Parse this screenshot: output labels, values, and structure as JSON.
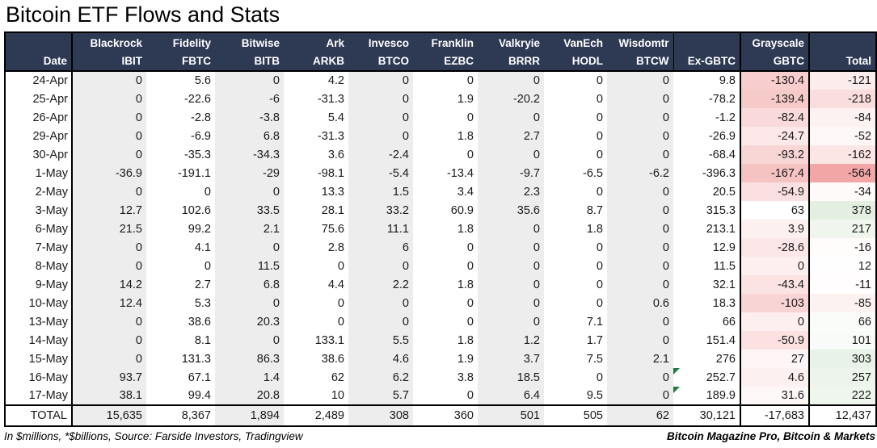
{
  "title": "Bitcoin ETF Flows and Stats",
  "footer": {
    "left": "In $millions, *$billions, Source: Farside Investors, Tradingview",
    "right": "Bitcoin Magazine Pro, Bitcoin & Markets"
  },
  "colors": {
    "header_bg": "#2E3A54",
    "header_text": "#FFFFFF",
    "band_gray": "#EDEDED",
    "band_white": "#FFFFFF",
    "total_neg_red": "#F3A6A6",
    "total_pos_green": "#E4EFE2",
    "gbtc_min_red": "#F6C3C3",
    "flag_green": "#1F7B3B"
  },
  "scales": {
    "gbtc": {
      "min": -167.4,
      "max": 63
    },
    "total": {
      "neg_limit": -564,
      "pos_limit": 378
    }
  },
  "chart_data": {
    "type": "table",
    "title": "Bitcoin ETF Flows and Stats",
    "column_groups": [
      "",
      "Blackrock",
      "Fidelity",
      "Bitwise",
      "Ark",
      "Invesco",
      "Franklin",
      "Valkryie",
      "VanEch",
      "Wisdomtr",
      "",
      "Grayscale",
      ""
    ],
    "columns": [
      "Date",
      "IBIT",
      "FBTC",
      "BITB",
      "ARKB",
      "BTCO",
      "EZBC",
      "BRRR",
      "HODL",
      "BTCW",
      "Ex-GBTC",
      "GBTC",
      "Total"
    ],
    "rows": [
      {
        "date": "24-Apr",
        "values": [
          "0",
          "5.6",
          "0",
          "4.2",
          "0",
          "0",
          "0",
          "0",
          "0",
          "9.8",
          "-130.4",
          "-121"
        ]
      },
      {
        "date": "25-Apr",
        "values": [
          "0",
          "-22.6",
          "-6",
          "-31.3",
          "0",
          "1.9",
          "-20.2",
          "0",
          "0",
          "-78.2",
          "-139.4",
          "-218"
        ]
      },
      {
        "date": "26-Apr",
        "values": [
          "0",
          "-2.8",
          "-3.8",
          "5.4",
          "0",
          "0",
          "0",
          "0",
          "0",
          "-1.2",
          "-82.4",
          "-84"
        ]
      },
      {
        "date": "29-Apr",
        "values": [
          "0",
          "-6.9",
          "6.8",
          "-31.3",
          "0",
          "1.8",
          "2.7",
          "0",
          "0",
          "-26.9",
          "-24.7",
          "-52"
        ]
      },
      {
        "date": "30-Apr",
        "values": [
          "0",
          "-35.3",
          "-34.3",
          "3.6",
          "-2.4",
          "0",
          "0",
          "0",
          "0",
          "-68.4",
          "-93.2",
          "-162"
        ]
      },
      {
        "date": "1-May",
        "values": [
          "-36.9",
          "-191.1",
          "-29",
          "-98.1",
          "-5.4",
          "-13.4",
          "-9.7",
          "-6.5",
          "-6.2",
          "-396.3",
          "-167.4",
          "-564"
        ]
      },
      {
        "date": "2-May",
        "values": [
          "0",
          "0",
          "0",
          "13.3",
          "1.5",
          "3.4",
          "2.3",
          "0",
          "0",
          "20.5",
          "-54.9",
          "-34"
        ]
      },
      {
        "date": "3-May",
        "values": [
          "12.7",
          "102.6",
          "33.5",
          "28.1",
          "33.2",
          "60.9",
          "35.6",
          "8.7",
          "0",
          "315.3",
          "63",
          "378"
        ]
      },
      {
        "date": "6-May",
        "values": [
          "21.5",
          "99.2",
          "2.1",
          "75.6",
          "11.1",
          "1.8",
          "0",
          "1.8",
          "0",
          "213.1",
          "3.9",
          "217"
        ]
      },
      {
        "date": "7-May",
        "values": [
          "0",
          "4.1",
          "0",
          "2.8",
          "6",
          "0",
          "0",
          "0",
          "0",
          "12.9",
          "-28.6",
          "-16"
        ]
      },
      {
        "date": "8-May",
        "values": [
          "0",
          "0",
          "11.5",
          "0",
          "0",
          "0",
          "0",
          "0",
          "0",
          "11.5",
          "0",
          "12"
        ]
      },
      {
        "date": "9-May",
        "values": [
          "14.2",
          "2.7",
          "6.8",
          "4.4",
          "2.2",
          "1.8",
          "0",
          "0",
          "0",
          "32.1",
          "-43.4",
          "-11"
        ]
      },
      {
        "date": "10-May",
        "values": [
          "12.4",
          "5.3",
          "0",
          "0",
          "0",
          "0",
          "0",
          "0",
          "0.6",
          "18.3",
          "-103",
          "-85"
        ]
      },
      {
        "date": "13-May",
        "values": [
          "0",
          "38.6",
          "20.3",
          "0",
          "0",
          "0",
          "0",
          "7.1",
          "0",
          "66",
          "0",
          "66"
        ]
      },
      {
        "date": "14-May",
        "values": [
          "0",
          "8.1",
          "0",
          "133.1",
          "5.5",
          "1.8",
          "1.2",
          "1.7",
          "0",
          "151.4",
          "-50.9",
          "101"
        ]
      },
      {
        "date": "15-May",
        "values": [
          "0",
          "131.3",
          "86.3",
          "38.6",
          "4.6",
          "1.9",
          "3.7",
          "7.5",
          "2.1",
          "276",
          "27",
          "303"
        ]
      },
      {
        "date": "16-May",
        "values": [
          "93.7",
          "67.1",
          "1.4",
          "62",
          "6.2",
          "3.8",
          "18.5",
          "0",
          "0",
          "252.7",
          "4.6",
          "257"
        ],
        "flag": true
      },
      {
        "date": "17-May",
        "values": [
          "38.1",
          "99.4",
          "20.8",
          "10",
          "5.7",
          "0",
          "6.4",
          "9.5",
          "0",
          "189.9",
          "31.6",
          "222"
        ],
        "flag": true
      }
    ],
    "total_row": {
      "label": "TOTAL",
      "values": [
        "15,635",
        "8,367",
        "1,894",
        "2,489",
        "308",
        "360",
        "501",
        "505",
        "62",
        "30,121",
        "-17,683",
        "12,437"
      ]
    }
  }
}
